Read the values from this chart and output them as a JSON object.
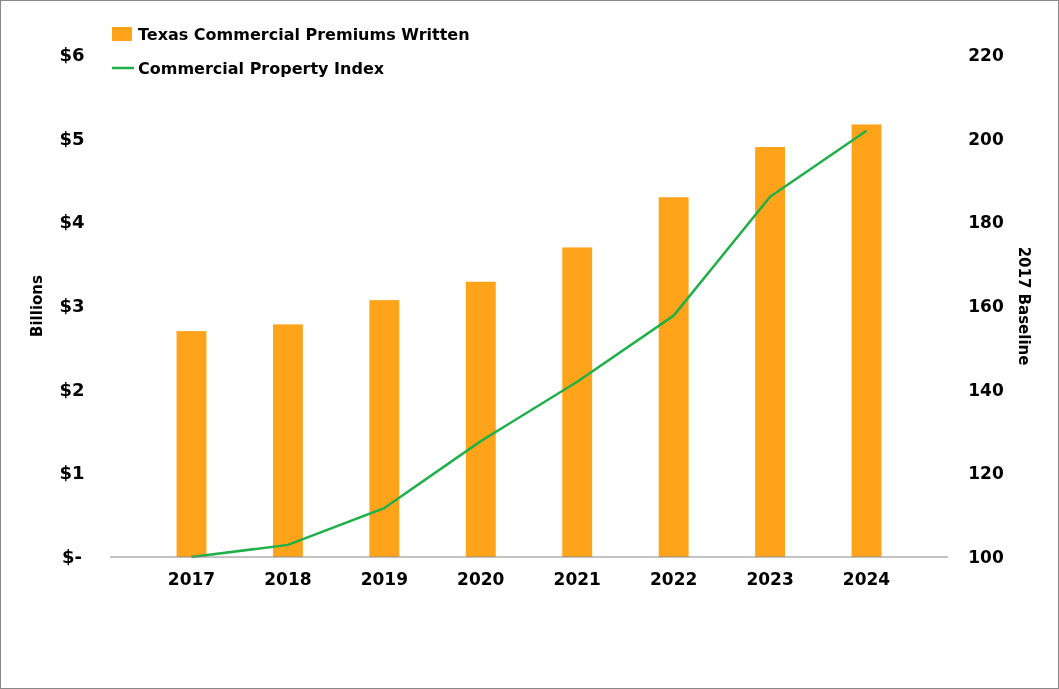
{
  "chart_data": {
    "type": "bar",
    "categories": [
      "2017",
      "2018",
      "2019",
      "2020",
      "2021",
      "2022",
      "2023",
      "2024"
    ],
    "series": [
      {
        "name": "Texas Commercial Premiums Written",
        "color": "#ffa31a",
        "values": [
          2.7,
          2.78,
          3.07,
          3.29,
          3.7,
          4.3,
          4.9,
          5.17
        ]
      },
      {
        "name": "Commercial Property Index",
        "type": "line",
        "axis": "y2",
        "color": "#1fb04a",
        "values": [
          100,
          102.9,
          111.7,
          127.7,
          141.9,
          157.7,
          186.1,
          201.9
        ]
      }
    ],
    "ylabel": "Billions",
    "y2label": "2017 Baseline",
    "ylim": [
      0,
      6
    ],
    "yticks": [
      {
        "value": 0,
        "label": "$-"
      },
      {
        "value": 1,
        "label": "$1"
      },
      {
        "value": 2,
        "label": "$2"
      },
      {
        "value": 3,
        "label": "$3"
      },
      {
        "value": 4,
        "label": "$4"
      },
      {
        "value": 5,
        "label": "$5"
      },
      {
        "value": 6,
        "label": "$6"
      }
    ],
    "y2lim": [
      100,
      220
    ],
    "y2ticks": [
      100,
      120,
      140,
      160,
      180,
      200,
      220
    ],
    "legend": "top left",
    "grid": false
  }
}
